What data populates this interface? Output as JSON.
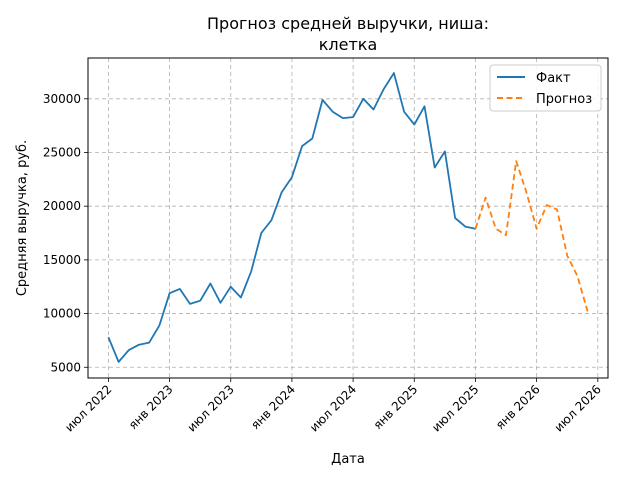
{
  "chart_data": {
    "type": "line",
    "title_lines": [
      "Прогноз средней выручки, ниша:",
      "клетка"
    ],
    "xlabel": "Дата",
    "ylabel": "Средняя выручка, руб.",
    "x_ticks": [
      "июл 2022",
      "янв 2023",
      "июл 2023",
      "янв 2024",
      "июл 2024",
      "янв 2025",
      "июл 2025",
      "янв 2026",
      "июл 2026"
    ],
    "y_ticks": [
      "5000",
      "10000",
      "15000",
      "20000",
      "25000",
      "30000"
    ],
    "ylim": [
      4000,
      33800
    ],
    "xlim": [
      "2022-05",
      "2026-08"
    ],
    "grid": true,
    "legend_position": "top-right",
    "series": [
      {
        "name": "Факт",
        "color": "#1f77b4",
        "style": "solid",
        "x": [
          "2022-07",
          "2022-08",
          "2022-09",
          "2022-10",
          "2022-11",
          "2022-12",
          "2023-01",
          "2023-02",
          "2023-03",
          "2023-04",
          "2023-05",
          "2023-06",
          "2023-07",
          "2023-08",
          "2023-09",
          "2023-10",
          "2023-11",
          "2023-12",
          "2024-01",
          "2024-02",
          "2024-03",
          "2024-04",
          "2024-05",
          "2024-06",
          "2024-07",
          "2024-08",
          "2024-09",
          "2024-10",
          "2024-11",
          "2024-12",
          "2025-01",
          "2025-02",
          "2025-03",
          "2025-04",
          "2025-05",
          "2025-06",
          "2025-07"
        ],
        "values": [
          7800,
          5500,
          6600,
          7100,
          7300,
          8900,
          11900,
          12300,
          10900,
          11200,
          12800,
          11000,
          12500,
          11500,
          13900,
          17500,
          18700,
          21300,
          22700,
          25600,
          26300,
          29900,
          28800,
          28200,
          28300,
          30000,
          29000,
          30900,
          32400,
          28800,
          27600,
          29300,
          23600,
          25100,
          18900,
          18100,
          17900
        ]
      },
      {
        "name": "Прогноз",
        "color": "#ff7f0e",
        "style": "dashed",
        "x": [
          "2025-07",
          "2025-08",
          "2025-09",
          "2025-10",
          "2025-11",
          "2025-12",
          "2026-01",
          "2026-02",
          "2026-03",
          "2026-04",
          "2026-05",
          "2026-06"
        ],
        "values": [
          17900,
          20800,
          17900,
          17300,
          24200,
          21300,
          17900,
          20100,
          19700,
          15400,
          13500,
          10200
        ]
      }
    ]
  }
}
